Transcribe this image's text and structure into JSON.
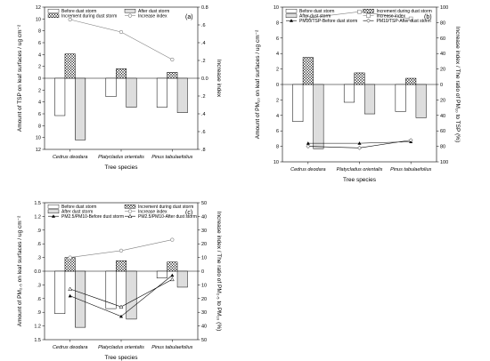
{
  "figure": {
    "xlabel": "Tree species",
    "categories": [
      "Cedrus deodara",
      "Platycladus orientalis",
      "Pinus tabulaefolius"
    ]
  },
  "patterns": {
    "before_fill": "#ffffff",
    "increment_fill": "crosshatch",
    "after_fill": "vertical-lines",
    "line_color": "#808080"
  },
  "chart_data": [
    {
      "type": "bar",
      "panel_label": "(a)",
      "ylabel": "Amount of TSP on leaf surfaces / ug cm⁻²",
      "y2label": "Increase index",
      "categories": [
        "Cedrus deodara",
        "Platycladus orientalis",
        "Pinus tabulaefolius"
      ],
      "ylim": [
        -12,
        12
      ],
      "yticks": [
        "12",
        "10",
        "8",
        "6",
        "4",
        "2",
        "0",
        "2",
        "4",
        "6",
        "8",
        "10",
        "12"
      ],
      "y2lim": [
        -0.8,
        0.8
      ],
      "y2ticks": [
        "0.8",
        ".6",
        ".4",
        ".2",
        "0.0",
        ".2",
        ".4",
        ".6",
        ".8"
      ],
      "legend": [
        "Before dust storm",
        "After dust storm",
        "Increment during dust storm",
        "Increase index"
      ],
      "series": [
        {
          "name": "Before dust storm",
          "values": [
            -6.3,
            -3.1,
            -4.9
          ],
          "axis": "left"
        },
        {
          "name": "Increment during dust storm",
          "values": [
            4.1,
            1.6,
            1.0
          ],
          "axis": "left"
        },
        {
          "name": "After dust storm",
          "values": [
            -10.4,
            -4.9,
            -5.8
          ],
          "axis": "left"
        },
        {
          "name": "Increase index",
          "values": [
            0.66,
            0.52,
            0.21
          ],
          "axis": "right",
          "marker": "open-circle"
        }
      ]
    },
    {
      "type": "bar",
      "panel_label": "(b)",
      "ylabel": "Amount of PM₁₀ on leaf surfaces / ug cm⁻²",
      "y2label": "Increase index / The ratio of PM₁₀ to TSP (%)",
      "categories": [
        "Cedrus deodara",
        "Platycladus orientalis",
        "Pinus tabulaefolius"
      ],
      "ylim": [
        -10,
        10
      ],
      "yticks": [
        "10",
        "8",
        "6",
        "4",
        "2",
        "0",
        "2",
        "4",
        "6",
        "8",
        "10"
      ],
      "y2lim": [
        -100,
        100
      ],
      "y2ticks": [
        "100",
        "80",
        "60",
        "40",
        "20",
        "0",
        "20",
        "40",
        "60",
        "80",
        "100"
      ],
      "legend": [
        "Before dust storm",
        "Increment during dust storm",
        "After dust storm",
        "Increase index",
        "PM10/TSP-Before dust storm",
        "PM10/TSP-After dust storm"
      ],
      "series": [
        {
          "name": "Before dust storm",
          "values": [
            -4.8,
            -2.3,
            -3.5
          ],
          "axis": "left"
        },
        {
          "name": "Increment during dust storm",
          "values": [
            3.5,
            1.5,
            0.8
          ],
          "axis": "left"
        },
        {
          "name": "After dust storm",
          "values": [
            -8.3,
            -3.8,
            -4.3
          ],
          "axis": "left"
        },
        {
          "name": "Increase index",
          "values": [
            86,
            94,
            85
          ],
          "axis": "right",
          "marker": "open-square"
        },
        {
          "name": "PM10/TSP-Before dust storm",
          "values": [
            -76,
            -76,
            -74
          ],
          "axis": "right",
          "marker": "filled-triangle"
        },
        {
          "name": "PM10/TSP-After dust storm",
          "values": [
            -80,
            -82,
            -72
          ],
          "axis": "right",
          "marker": "open-diamond"
        }
      ]
    },
    {
      "type": "bar",
      "panel_label": "(c)",
      "ylabel": "Amount of PM₂.₅ on leaf surfaces / ug cm⁻²",
      "y2label": "Increase index / The ratio of PM₂.₅ to PM₁₀ (%)",
      "categories": [
        "Cedrus deodara",
        "Platycladus orientalis",
        "Pinus tabulaefolius"
      ],
      "ylim": [
        -1.5,
        1.5
      ],
      "yticks": [
        "1.5",
        "1.2",
        ".9",
        ".6",
        ".3",
        "0.0",
        ".3",
        ".6",
        ".9",
        "1.2",
        "1.5"
      ],
      "y2lim": [
        -50,
        50
      ],
      "y2ticks": [
        "50",
        "40",
        "30",
        "20",
        "10",
        "0",
        "10",
        "20",
        "30",
        "40",
        "50"
      ],
      "legend": [
        "Before dust storm",
        "Increment during dust storm",
        "After dust storm",
        "Increase index",
        "PM2.5/PM10-Before dust storm",
        "PM2.5/PM10-After dust storm"
      ],
      "series": [
        {
          "name": "Before dust storm",
          "values": [
            -0.93,
            -0.82,
            -0.15
          ],
          "axis": "left"
        },
        {
          "name": "Increment during dust storm",
          "values": [
            0.3,
            0.23,
            0.2
          ],
          "axis": "left"
        },
        {
          "name": "After dust storm",
          "values": [
            -1.23,
            -1.05,
            -0.35
          ],
          "axis": "left"
        },
        {
          "name": "Increase index",
          "values": [
            10,
            15,
            23
          ],
          "axis": "right",
          "marker": "open-circle"
        },
        {
          "name": "PM2.5/PM10-Before dust storm",
          "values": [
            -18,
            -33,
            -3
          ],
          "axis": "right",
          "marker": "filled-triangle"
        },
        {
          "name": "PM2.5/PM10-After dust storm",
          "values": [
            -13,
            -26,
            -6
          ],
          "axis": "right",
          "marker": "open-triangle"
        }
      ]
    }
  ]
}
